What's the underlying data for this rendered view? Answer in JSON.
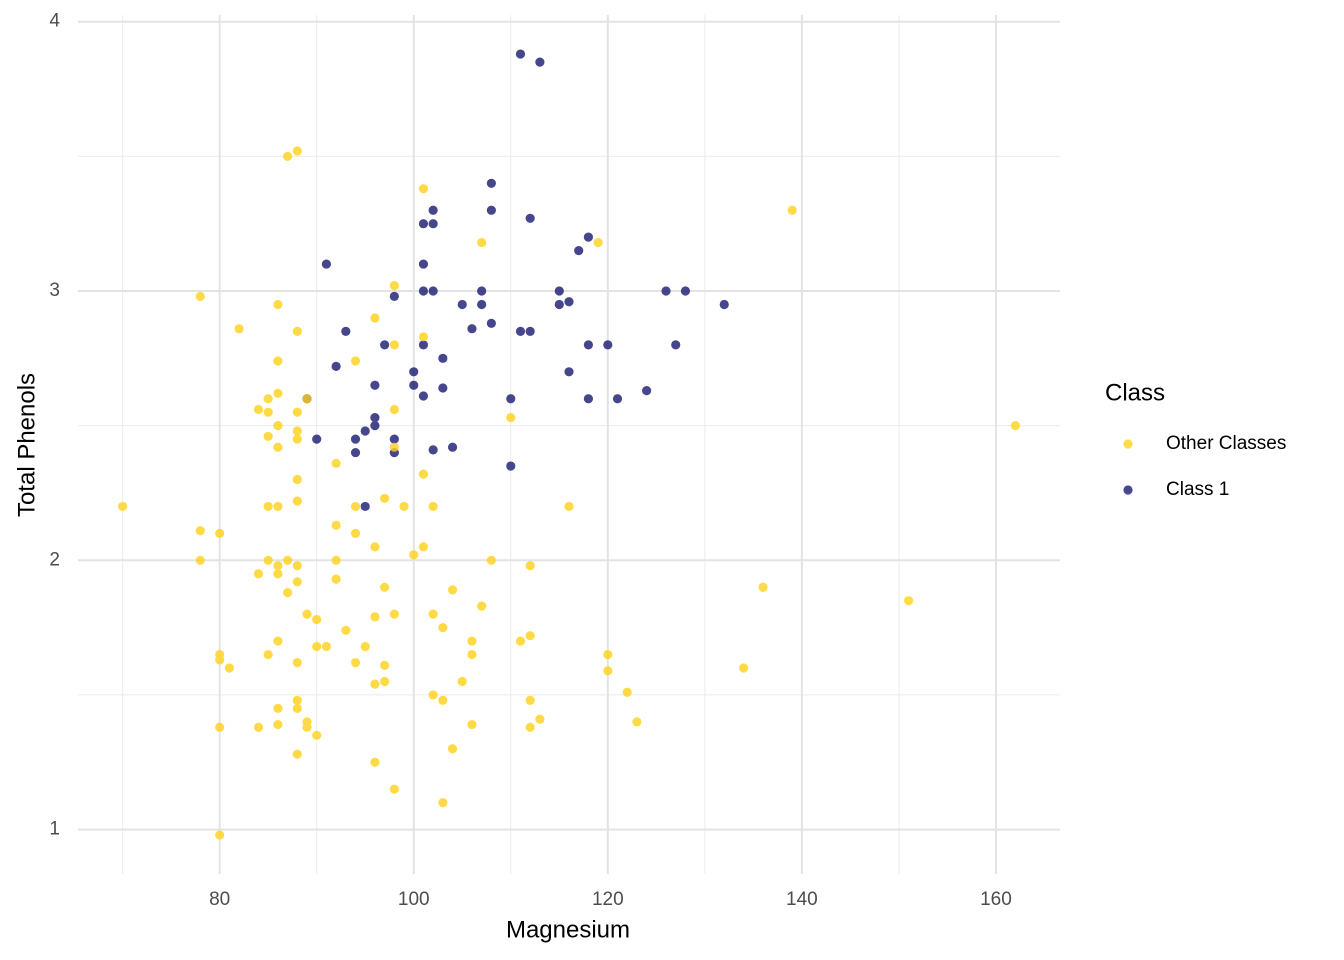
{
  "chart_data": {
    "type": "scatter",
    "x_label": "Magnesium",
    "y_label": "Total Phenols",
    "legend_title": "Class",
    "legend": "right",
    "grid": true,
    "xlim": [
      65.4,
      166.6
    ],
    "ylim": [
      0.835,
      4.025
    ],
    "xticks": [
      80,
      100,
      120,
      140,
      160
    ],
    "yticks": [
      1,
      2,
      3,
      4
    ],
    "x_minor_grid": [
      70,
      90,
      110,
      130,
      150
    ],
    "y_minor_grid": [
      1.5,
      2.5,
      3.5
    ],
    "draw_order": [
      1,
      0
    ],
    "series": [
      {
        "name": "Other Classes",
        "color": "#FFD21A",
        "opacity": 0.8,
        "x": [
          87,
          88,
          101,
          139,
          107,
          119,
          98,
          78,
          86,
          96,
          82,
          88,
          101,
          98,
          94,
          86,
          86,
          85,
          89,
          84,
          85,
          88,
          98,
          110,
          162,
          86,
          88,
          85,
          88,
          86,
          98,
          92,
          101,
          88,
          97,
          88,
          70,
          85,
          86,
          94,
          99,
          102,
          116,
          92,
          78,
          80,
          94,
          96,
          101,
          100,
          78,
          85,
          87,
          92,
          108,
          86,
          88,
          112,
          84,
          86,
          88,
          92,
          136,
          97,
          104,
          87,
          151,
          107,
          89,
          96,
          98,
          102,
          90,
          103,
          93,
          111,
          112,
          86,
          106,
          91,
          90,
          95,
          80,
          120,
          85,
          106,
          80,
          88,
          94,
          97,
          81,
          134,
          120,
          105,
          97,
          96,
          102,
          122,
          88,
          103,
          112,
          86,
          88,
          113,
          123,
          89,
          86,
          106,
          80,
          84,
          89,
          112,
          90,
          104,
          88,
          96,
          98,
          103,
          80
        ],
        "y": [
          3.5,
          3.52,
          3.38,
          3.3,
          3.18,
          3.18,
          3.02,
          2.98,
          2.95,
          2.9,
          2.86,
          2.85,
          2.83,
          2.8,
          2.74,
          2.74,
          2.62,
          2.6,
          2.6,
          2.56,
          2.55,
          2.55,
          2.56,
          2.53,
          2.5,
          2.5,
          2.48,
          2.46,
          2.45,
          2.42,
          2.42,
          2.36,
          2.32,
          2.3,
          2.23,
          2.22,
          2.2,
          2.2,
          2.2,
          2.2,
          2.2,
          2.2,
          2.2,
          2.13,
          2.11,
          2.1,
          2.1,
          2.05,
          2.05,
          2.02,
          2.0,
          2.0,
          2.0,
          2.0,
          2.0,
          1.98,
          1.98,
          1.98,
          1.95,
          1.95,
          1.92,
          1.93,
          1.9,
          1.9,
          1.89,
          1.88,
          1.85,
          1.83,
          1.8,
          1.79,
          1.8,
          1.8,
          1.78,
          1.75,
          1.74,
          1.7,
          1.72,
          1.7,
          1.7,
          1.68,
          1.68,
          1.68,
          1.65,
          1.65,
          1.65,
          1.65,
          1.63,
          1.62,
          1.62,
          1.61,
          1.6,
          1.6,
          1.59,
          1.55,
          1.55,
          1.54,
          1.5,
          1.51,
          1.48,
          1.48,
          1.48,
          1.45,
          1.45,
          1.41,
          1.4,
          1.4,
          1.39,
          1.39,
          1.38,
          1.38,
          1.38,
          1.38,
          1.35,
          1.3,
          1.28,
          1.25,
          1.15,
          1.1,
          0.98
        ]
      },
      {
        "name": "Class 1",
        "color": "#191970",
        "opacity": 0.8,
        "x": [
          111,
          113,
          108,
          102,
          108,
          112,
          101,
          102,
          118,
          117,
          91,
          101,
          101,
          102,
          107,
          115,
          126,
          128,
          98,
          105,
          107,
          115,
          116,
          132,
          106,
          108,
          93,
          111,
          112,
          97,
          101,
          118,
          120,
          127,
          103,
          92,
          116,
          100,
          96,
          100,
          103,
          124,
          101,
          110,
          118,
          121,
          89,
          96,
          96,
          95,
          90,
          94,
          98,
          102,
          104,
          94,
          98,
          110,
          95
        ],
        "y": [
          3.88,
          3.85,
          3.4,
          3.3,
          3.3,
          3.27,
          3.25,
          3.25,
          3.2,
          3.15,
          3.1,
          3.1,
          3.0,
          3.0,
          3.0,
          3.0,
          3.0,
          3.0,
          2.98,
          2.95,
          2.95,
          2.95,
          2.96,
          2.95,
          2.86,
          2.88,
          2.85,
          2.85,
          2.85,
          2.8,
          2.8,
          2.8,
          2.8,
          2.8,
          2.75,
          2.72,
          2.7,
          2.7,
          2.65,
          2.65,
          2.64,
          2.63,
          2.61,
          2.6,
          2.6,
          2.6,
          2.6,
          2.53,
          2.5,
          2.48,
          2.45,
          2.45,
          2.45,
          2.41,
          2.42,
          2.4,
          2.4,
          2.35,
          2.2
        ]
      }
    ]
  }
}
